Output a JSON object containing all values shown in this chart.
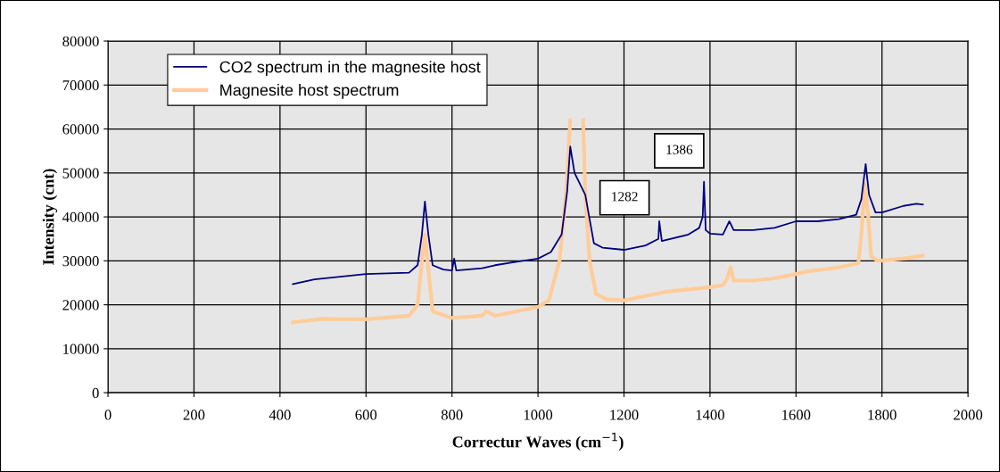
{
  "chart_data": {
    "type": "line",
    "xlabel": "Correctur Waves (cm$^{−1}$)",
    "ylabel": "Intensity (cnt)",
    "xlim": [
      0,
      2000
    ],
    "xticks": [
      0,
      200,
      400,
      600,
      800,
      1000,
      1200,
      1400,
      1600,
      1800,
      2000
    ],
    "ylim": [
      0,
      80000
    ],
    "yticks": [
      0,
      10000,
      20000,
      30000,
      40000,
      50000,
      60000,
      70000,
      80000
    ],
    "grid": true,
    "legend": "top left",
    "marker": "none",
    "line_style": "solid",
    "series": [
      {
        "name": "CO2 spectrum in the magnesite host",
        "color": "#000080",
        "x": [
          430,
          480,
          550,
          600,
          700,
          720,
          730,
          737,
          745,
          755,
          780,
          800,
          805,
          810,
          870,
          900,
          950,
          1000,
          1030,
          1055,
          1068,
          1075,
          1085,
          1110,
          1130,
          1150,
          1200,
          1250,
          1280,
          1282,
          1288,
          1350,
          1375,
          1383,
          1386,
          1390,
          1400,
          1430,
          1445,
          1455,
          1500,
          1550,
          1600,
          1650,
          1700,
          1740,
          1752,
          1762,
          1770,
          1785,
          1800,
          1850,
          1880,
          1895
        ],
        "values": [
          24700,
          25800,
          26500,
          27000,
          27300,
          29000,
          36000,
          43500,
          36000,
          29000,
          28000,
          27800,
          30500,
          27800,
          28300,
          29000,
          29800,
          30500,
          32000,
          36000,
          46000,
          56000,
          50000,
          45000,
          34000,
          33000,
          32500,
          33500,
          35000,
          39000,
          34500,
          36000,
          37500,
          40000,
          48000,
          37000,
          36200,
          36000,
          39000,
          37000,
          37000,
          37500,
          39000,
          39000,
          39500,
          40500,
          44000,
          52000,
          45000,
          41000,
          41000,
          42500,
          43000,
          42800
        ]
      },
      {
        "name": "Magnesite host spectrum",
        "color": "#ffcc99",
        "x": [
          430,
          500,
          600,
          700,
          720,
          730,
          737,
          745,
          755,
          800,
          870,
          880,
          900,
          1000,
          1025,
          1050,
          1065,
          1075,
          1090,
          1105,
          1110,
          1120,
          1135,
          1160,
          1200,
          1300,
          1400,
          1430,
          1440,
          1448,
          1455,
          1500,
          1550,
          1600,
          1620,
          1700,
          1745,
          1752,
          1760,
          1768,
          1775,
          1790,
          1850,
          1895
        ],
        "values": [
          16000,
          16800,
          16700,
          17500,
          20000,
          30000,
          36000,
          28000,
          18500,
          17000,
          17500,
          18500,
          17500,
          19500,
          21000,
          30000,
          45000,
          62000,
          null,
          62000,
          45000,
          30000,
          22500,
          21200,
          21000,
          23000,
          24000,
          24500,
          26000,
          28500,
          25500,
          25500,
          26000,
          27000,
          27500,
          28500,
          29500,
          36000,
          47500,
          40000,
          31000,
          30000,
          30500,
          31200
        ]
      }
    ],
    "annotations": [
      {
        "text": "1282",
        "x": 1282,
        "y": 39000
      },
      {
        "text": "1386",
        "x": 1386,
        "y": 48000
      }
    ]
  }
}
